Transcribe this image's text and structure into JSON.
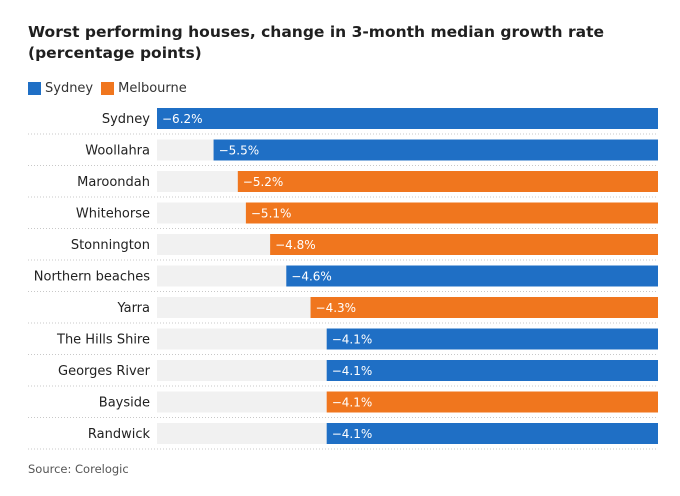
{
  "title": "Worst performing houses, change in 3-month median growth rate (percentage points)",
  "legend": [
    {
      "label": "Sydney",
      "color": "#1f6fc5"
    },
    {
      "label": "Melbourne",
      "color": "#f0761e"
    }
  ],
  "source": "Source: Corelogic",
  "chart_data": {
    "type": "bar",
    "orientation": "horizontal",
    "xlim": [
      -6.2,
      0
    ],
    "grid": false,
    "categories": [
      "Sydney",
      "Woollahra",
      "Maroondah",
      "Whitehorse",
      "Stonnington",
      "Northern beaches",
      "Yarra",
      "The Hills Shire",
      "Georges River",
      "Bayside",
      "Randwick"
    ],
    "values": [
      -6.2,
      -5.5,
      -5.2,
      -5.1,
      -4.8,
      -4.6,
      -4.3,
      -4.1,
      -4.1,
      -4.1,
      -4.1
    ],
    "value_labels": [
      "−6.2%",
      "−5.5%",
      "−5.2%",
      "−5.1%",
      "−4.8%",
      "−4.6%",
      "−4.3%",
      "−4.1%",
      "−4.1%",
      "−4.1%",
      "−4.1%"
    ],
    "groups": [
      "Sydney",
      "Sydney",
      "Melbourne",
      "Melbourne",
      "Melbourne",
      "Sydney",
      "Melbourne",
      "Sydney",
      "Sydney",
      "Melbourne",
      "Sydney"
    ],
    "colors": {
      "Sydney": "#1f6fc5",
      "Melbourne": "#f0761e",
      "track": "#f1f1f1"
    }
  }
}
